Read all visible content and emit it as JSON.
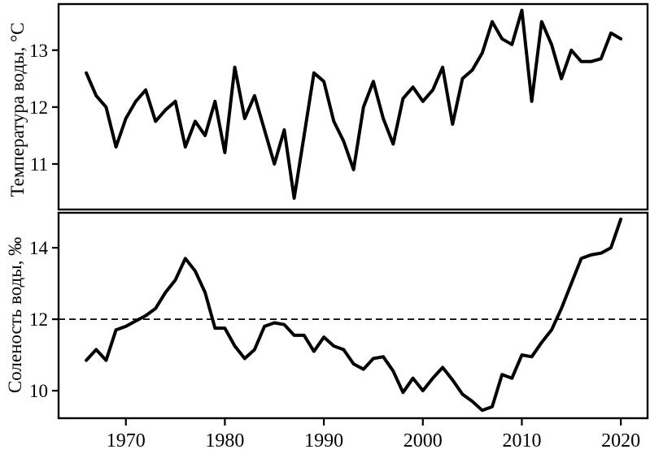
{
  "figure": {
    "background": "#ffffff",
    "line_color": "#000000",
    "frame_color": "#000000"
  },
  "chart_data": [
    {
      "type": "line",
      "panel": "top",
      "title": "",
      "ylabel": "Температура воды, °C",
      "xlabel": "",
      "legend": "none",
      "grid": false,
      "xlim": [
        1963.2,
        2022.7
      ],
      "ylim": [
        10.2,
        13.81
      ],
      "yticks": [
        11,
        12,
        13
      ],
      "xticks": [],
      "x": [
        1966,
        1967,
        1968,
        1969,
        1970,
        1971,
        1972,
        1973,
        1974,
        1975,
        1976,
        1977,
        1978,
        1979,
        1980,
        1981,
        1982,
        1983,
        1984,
        1985,
        1986,
        1987,
        1988,
        1989,
        1990,
        1991,
        1992,
        1993,
        1994,
        1995,
        1996,
        1997,
        1998,
        1999,
        2000,
        2001,
        2002,
        2003,
        2004,
        2005,
        2006,
        2007,
        2008,
        2009,
        2010,
        2011,
        2012,
        2013,
        2014,
        2015,
        2016,
        2017,
        2018,
        2019,
        2020
      ],
      "series": [
        {
          "name": "water-temperature",
          "values": [
            12.6,
            12.2,
            12.0,
            11.3,
            11.8,
            12.1,
            12.3,
            11.75,
            11.95,
            12.1,
            11.3,
            11.75,
            11.5,
            12.1,
            11.2,
            12.7,
            11.8,
            12.2,
            11.6,
            11.0,
            11.6,
            10.4,
            11.5,
            12.6,
            12.45,
            11.75,
            11.4,
            10.9,
            12.0,
            12.45,
            11.8,
            11.35,
            12.15,
            12.35,
            12.1,
            12.3,
            12.7,
            11.7,
            12.5,
            12.65,
            12.95,
            13.5,
            13.2,
            13.1,
            13.7,
            12.1,
            13.5,
            13.1,
            12.5,
            13.0,
            12.8,
            12.8,
            12.85,
            13.3,
            13.2
          ]
        }
      ]
    },
    {
      "type": "line",
      "panel": "bottom",
      "title": "",
      "ylabel": "Соленость воды, ‰",
      "xlabel": "",
      "legend": "none",
      "grid": false,
      "xlim": [
        1963.2,
        2022.7
      ],
      "ylim": [
        9.23,
        14.98
      ],
      "yticks": [
        10,
        12,
        14
      ],
      "xticks": [
        1970,
        1980,
        1990,
        2000,
        2010,
        2020
      ],
      "reference_line_y": 12,
      "reference_line_style": "dashed",
      "x": [
        1966,
        1967,
        1968,
        1969,
        1970,
        1971,
        1972,
        1973,
        1974,
        1975,
        1976,
        1977,
        1978,
        1979,
        1980,
        1981,
        1982,
        1983,
        1984,
        1985,
        1986,
        1987,
        1988,
        1989,
        1990,
        1991,
        1992,
        1993,
        1994,
        1995,
        1996,
        1997,
        1998,
        1999,
        2000,
        2001,
        2002,
        2003,
        2004,
        2005,
        2006,
        2007,
        2008,
        2009,
        2010,
        2011,
        2012,
        2013,
        2014,
        2015,
        2016,
        2017,
        2018,
        2019,
        2020
      ],
      "series": [
        {
          "name": "water-salinity",
          "values": [
            10.85,
            11.15,
            10.85,
            11.7,
            11.8,
            11.95,
            12.1,
            12.3,
            12.75,
            13.1,
            13.7,
            13.35,
            12.75,
            11.75,
            11.75,
            11.25,
            10.9,
            11.15,
            11.8,
            11.9,
            11.85,
            11.55,
            11.55,
            11.1,
            11.5,
            11.25,
            11.15,
            10.75,
            10.6,
            10.9,
            10.95,
            10.55,
            9.95,
            10.35,
            10.0,
            10.35,
            10.65,
            10.3,
            9.9,
            9.7,
            9.45,
            9.55,
            10.45,
            10.35,
            11.0,
            10.95,
            11.35,
            11.7,
            12.3,
            13.0,
            13.7,
            13.8,
            13.85,
            14.0,
            14.8
          ]
        }
      ]
    }
  ]
}
